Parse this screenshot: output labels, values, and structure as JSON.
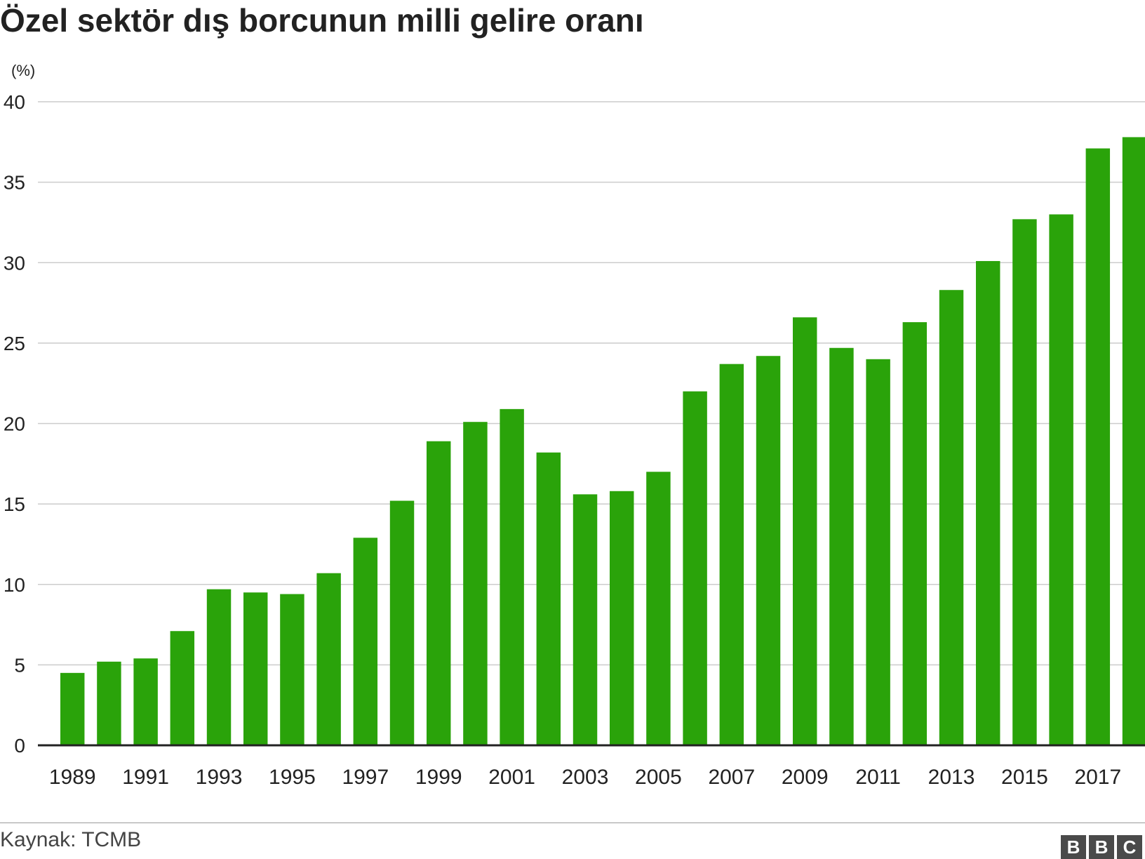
{
  "title": "Özel sektör dış borcunun milli gelire oranı",
  "unit_label": "(%)",
  "source": "Kaynak: TCMB",
  "logo": [
    "B",
    "B",
    "C"
  ],
  "colors": {
    "bar": "#2aa30a",
    "grid": "#cccccc",
    "axis": "#222222"
  },
  "chart_data": {
    "type": "bar",
    "title": "Özel sektör dış borcunun milli gelire oranı",
    "ylabel": "(%)",
    "xlabel": "",
    "ylim": [
      0,
      40
    ],
    "yticks": [
      0,
      5,
      10,
      15,
      20,
      25,
      30,
      35,
      40
    ],
    "grid": true,
    "categories": [
      "1989",
      "1990",
      "1991",
      "1992",
      "1993",
      "1994",
      "1995",
      "1996",
      "1997",
      "1998",
      "1999",
      "2000",
      "2001",
      "2002",
      "2003",
      "2004",
      "2005",
      "2006",
      "2007",
      "2008",
      "2009",
      "2010",
      "2011",
      "2012",
      "2013",
      "2014",
      "2015",
      "2016",
      "2017",
      "2018"
    ],
    "x_tick_labels": [
      "1989",
      "1991",
      "1993",
      "1995",
      "1997",
      "1999",
      "2001",
      "2003",
      "2005",
      "2007",
      "2009",
      "2011",
      "2013",
      "2015",
      "2017"
    ],
    "values": [
      4.5,
      5.2,
      5.4,
      7.1,
      9.7,
      9.5,
      9.4,
      10.7,
      12.9,
      15.2,
      18.9,
      20.1,
      20.9,
      18.2,
      15.6,
      15.8,
      17.0,
      22.0,
      23.7,
      24.2,
      26.6,
      24.7,
      24.0,
      26.3,
      28.3,
      30.1,
      32.7,
      33.0,
      37.1,
      37.8
    ]
  }
}
